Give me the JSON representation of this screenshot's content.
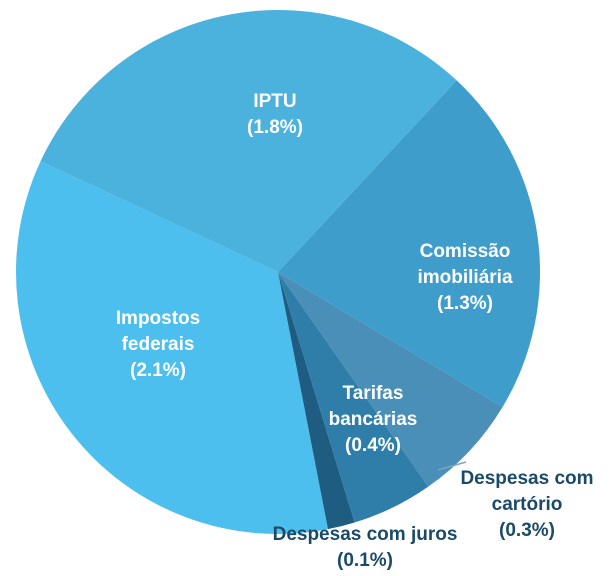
{
  "chart_data": {
    "type": "pie",
    "categories": [
      "IPTU",
      "Comissão imobiliária",
      "Tarifas bancárias",
      "Despesas com cartório",
      "Despesas com juros",
      "Impostos federais"
    ],
    "values": [
      1.8,
      1.3,
      0.4,
      0.3,
      0.1,
      2.1
    ],
    "value_labels": [
      "(1.8%)",
      "(1.3%)",
      "(0.4%)",
      "(0.3%)",
      "(0.1%)",
      "(2.1%)"
    ],
    "colors": [
      "#4ab2dc",
      "#3e9dcb",
      "#4a8fb8",
      "#2f7ea9",
      "#1e5c82",
      "#4dbfee"
    ]
  }
}
